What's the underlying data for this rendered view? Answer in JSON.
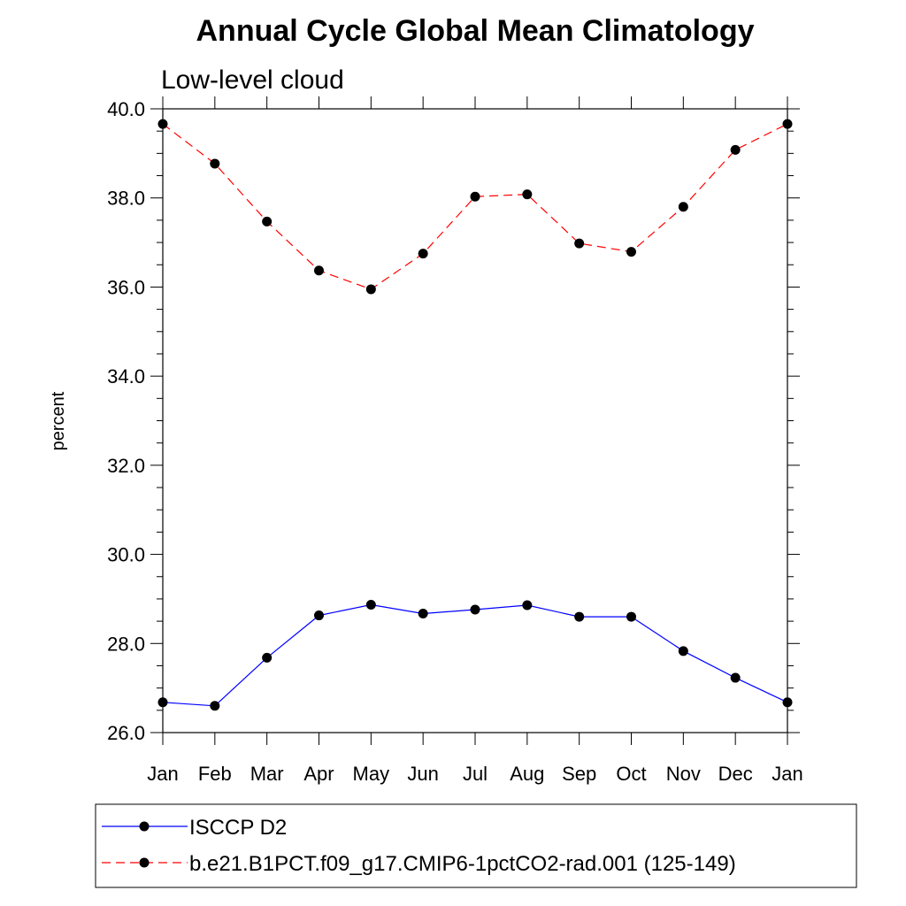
{
  "chart_data": {
    "type": "line",
    "title": "Annual Cycle Global Mean Climatology",
    "subtitle": "Low-level cloud",
    "xlabel": "",
    "ylabel": "percent",
    "categories": [
      "Jan",
      "Feb",
      "Mar",
      "Apr",
      "May",
      "Jun",
      "Jul",
      "Aug",
      "Sep",
      "Oct",
      "Nov",
      "Dec",
      "Jan"
    ],
    "ylim": [
      26.0,
      40.0
    ],
    "yticks": [
      "26.0",
      "28.0",
      "30.0",
      "32.0",
      "34.0",
      "36.0",
      "38.0",
      "40.0"
    ],
    "ytick_values": [
      26,
      28,
      30,
      32,
      34,
      36,
      38,
      40
    ],
    "grid": false,
    "legend_position": "bottom",
    "series": [
      {
        "name": "ISCCP D2",
        "color": "#0000ff",
        "dash": "solid",
        "values": [
          26.68,
          26.6,
          27.68,
          28.63,
          28.87,
          28.67,
          28.76,
          28.86,
          28.6,
          28.6,
          27.83,
          27.23,
          26.68
        ]
      },
      {
        "name": "b.e21.B1PCT.f09_g17.CMIP6-1pctCO2-rad.001 (125-149)",
        "color": "#ff0000",
        "dash": "dashed",
        "values": [
          39.66,
          38.77,
          37.47,
          36.37,
          35.95,
          36.75,
          38.03,
          38.08,
          36.98,
          36.79,
          37.8,
          39.08,
          39.66
        ]
      }
    ]
  }
}
